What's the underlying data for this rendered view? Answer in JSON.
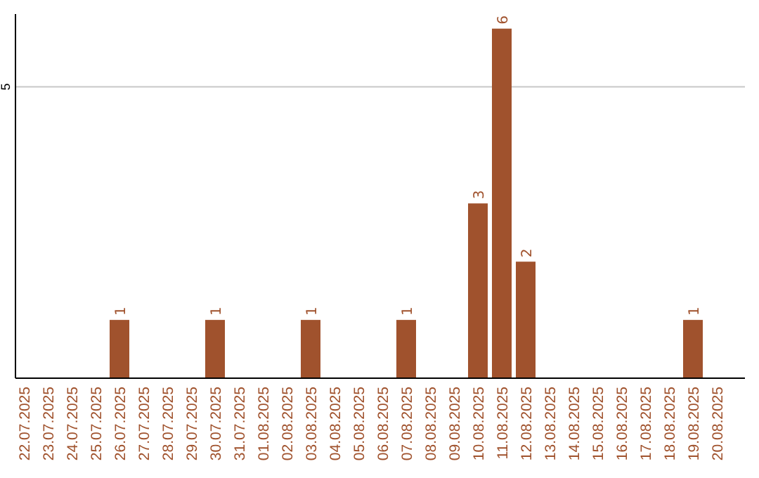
{
  "chart_data": {
    "type": "bar",
    "categories": [
      "22.07.2025",
      "23.07.2025",
      "24.07.2025",
      "25.07.2025",
      "26.07.2025",
      "27.07.2025",
      "28.07.2025",
      "29.07.2025",
      "30.07.2025",
      "31.07.2025",
      "01.08.2025",
      "02.08.2025",
      "03.08.2025",
      "04.08.2025",
      "05.08.2025",
      "06.08.2025",
      "07.08.2025",
      "08.08.2025",
      "09.08.2025",
      "10.08.2025",
      "11.08.2025",
      "12.08.2025",
      "13.08.2025",
      "14.08.2025",
      "15.08.2025",
      "16.08.2025",
      "17.08.2025",
      "18.08.2025",
      "19.08.2025",
      "20.08.2025"
    ],
    "values": [
      0,
      0,
      0,
      0,
      1,
      0,
      0,
      0,
      1,
      0,
      0,
      0,
      1,
      0,
      0,
      0,
      1,
      0,
      0,
      3,
      6,
      2,
      0,
      0,
      0,
      0,
      0,
      0,
      1,
      0
    ],
    "color": "#a0522d",
    "value_labels": [
      null,
      null,
      null,
      null,
      "1",
      null,
      null,
      null,
      "1",
      null,
      null,
      null,
      "1",
      null,
      null,
      null,
      "1",
      null,
      null,
      "3",
      "6",
      "2",
      null,
      null,
      null,
      null,
      null,
      null,
      "1",
      null
    ],
    "ylim": [
      0,
      6.25
    ],
    "yticks": [
      5
    ],
    "grid": "y"
  }
}
